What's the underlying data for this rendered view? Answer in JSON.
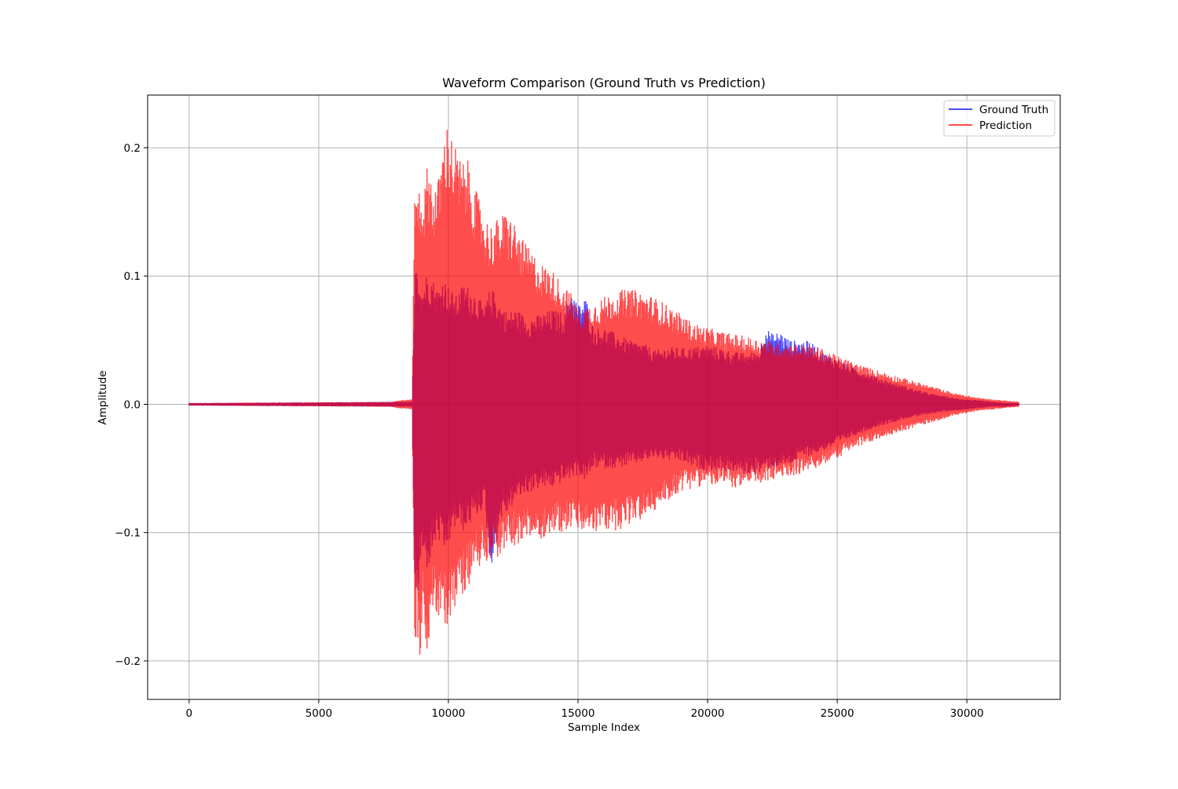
{
  "chart_data": {
    "type": "line",
    "title": "Waveform Comparison (Ground Truth vs Prediction)",
    "xlabel": "Sample Index",
    "ylabel": "Amplitude",
    "xlim": [
      -1600,
      33600
    ],
    "ylim": [
      -0.23,
      0.241
    ],
    "xticks": [
      {
        "value": 0,
        "label": "0"
      },
      {
        "value": 5000,
        "label": "5000"
      },
      {
        "value": 10000,
        "label": "10000"
      },
      {
        "value": 15000,
        "label": "15000"
      },
      {
        "value": 20000,
        "label": "20000"
      },
      {
        "value": 25000,
        "label": "25000"
      },
      {
        "value": 30000,
        "label": "30000"
      }
    ],
    "yticks": [
      {
        "value": -0.2,
        "label": "−0.2"
      },
      {
        "value": -0.1,
        "label": "−0.1"
      },
      {
        "value": 0.0,
        "label": "0.0"
      },
      {
        "value": 0.1,
        "label": "0.1"
      },
      {
        "value": 0.2,
        "label": "0.2"
      }
    ],
    "grid": true,
    "legend_position": "top-right",
    "series": [
      {
        "name": "Ground Truth",
        "color": "#0000ff",
        "opacity": 0.7,
        "envelope": {
          "x": [
            0,
            8600,
            8700,
            8750,
            8800,
            8900,
            9000,
            9200,
            9400,
            9600,
            9800,
            10000,
            10300,
            10600,
            11000,
            11400,
            11600,
            11800,
            12000,
            12300,
            12600,
            13000,
            13500,
            14000,
            14500,
            14700,
            15000,
            15300,
            15600,
            16000,
            16500,
            17000,
            17500,
            18000,
            18500,
            19000,
            19500,
            20000,
            20500,
            21000,
            21500,
            22000,
            22200,
            22500,
            22800,
            23200,
            23600,
            24000,
            24500,
            25000,
            25500,
            26000,
            26500,
            27000,
            27500,
            28000,
            28500,
            29000,
            29500,
            30000,
            30500,
            31000,
            31500,
            32000
          ],
          "upper": [
            0.001,
            0.002,
            0.085,
            0.124,
            0.11,
            0.1,
            0.092,
            0.105,
            0.098,
            0.09,
            0.1,
            0.092,
            0.085,
            0.095,
            0.088,
            0.076,
            0.09,
            0.088,
            0.078,
            0.072,
            0.075,
            0.068,
            0.07,
            0.074,
            0.072,
            0.092,
            0.078,
            0.084,
            0.06,
            0.06,
            0.055,
            0.05,
            0.048,
            0.042,
            0.045,
            0.044,
            0.045,
            0.046,
            0.044,
            0.041,
            0.04,
            0.042,
            0.061,
            0.055,
            0.057,
            0.05,
            0.05,
            0.049,
            0.04,
            0.036,
            0.03,
            0.026,
            0.022,
            0.018,
            0.015,
            0.012,
            0.009,
            0.007,
            0.005,
            0.004,
            0.003,
            0.002,
            0.001,
            0.001
          ],
          "lower": [
            -0.001,
            -0.002,
            -0.14,
            -0.165,
            -0.16,
            -0.13,
            -0.12,
            -0.13,
            -0.115,
            -0.105,
            -0.12,
            -0.11,
            -0.095,
            -0.1,
            -0.09,
            -0.08,
            -0.128,
            -0.118,
            -0.09,
            -0.085,
            -0.075,
            -0.07,
            -0.066,
            -0.065,
            -0.06,
            -0.058,
            -0.055,
            -0.06,
            -0.05,
            -0.05,
            -0.05,
            -0.048,
            -0.045,
            -0.042,
            -0.044,
            -0.045,
            -0.05,
            -0.052,
            -0.052,
            -0.053,
            -0.055,
            -0.054,
            -0.052,
            -0.05,
            -0.049,
            -0.047,
            -0.042,
            -0.04,
            -0.036,
            -0.032,
            -0.026,
            -0.022,
            -0.018,
            -0.015,
            -0.012,
            -0.01,
            -0.008,
            -0.006,
            -0.005,
            -0.004,
            -0.003,
            -0.002,
            -0.002,
            -0.001
          ]
        }
      },
      {
        "name": "Prediction",
        "color": "#ff0000",
        "opacity": 0.7,
        "envelope": {
          "x": [
            0,
            7800,
            8000,
            8600,
            8700,
            8750,
            8800,
            8900,
            9000,
            9100,
            9200,
            9300,
            9400,
            9600,
            9800,
            9900,
            10000,
            10200,
            10500,
            10800,
            11000,
            11300,
            11600,
            11900,
            12200,
            12500,
            12800,
            13200,
            13600,
            14000,
            14400,
            14800,
            15000,
            15400,
            15800,
            16200,
            16600,
            17000,
            17500,
            18000,
            18500,
            19000,
            19500,
            20000,
            20500,
            21000,
            21500,
            22000,
            22500,
            23000,
            23500,
            24000,
            24500,
            25000,
            25500,
            26000,
            26500,
            27000,
            27500,
            28000,
            28500,
            29000,
            29500,
            30000,
            30500,
            31000,
            31500,
            32000
          ],
          "upper": [
            0.001,
            0.002,
            0.003,
            0.004,
            0.183,
            0.16,
            0.17,
            0.175,
            0.165,
            0.172,
            0.19,
            0.185,
            0.17,
            0.175,
            0.205,
            0.218,
            0.22,
            0.205,
            0.19,
            0.19,
            0.17,
            0.155,
            0.14,
            0.145,
            0.15,
            0.145,
            0.13,
            0.12,
            0.11,
            0.105,
            0.095,
            0.085,
            0.074,
            0.078,
            0.082,
            0.086,
            0.089,
            0.09,
            0.088,
            0.083,
            0.077,
            0.07,
            0.063,
            0.06,
            0.057,
            0.055,
            0.053,
            0.051,
            0.049,
            0.048,
            0.047,
            0.046,
            0.043,
            0.038,
            0.034,
            0.03,
            0.027,
            0.024,
            0.021,
            0.018,
            0.015,
            0.012,
            0.009,
            0.007,
            0.005,
            0.004,
            0.003,
            0.002
          ],
          "lower": [
            -0.001,
            -0.002,
            -0.003,
            -0.004,
            -0.183,
            -0.19,
            -0.18,
            -0.2,
            -0.17,
            -0.175,
            -0.207,
            -0.17,
            -0.16,
            -0.17,
            -0.172,
            -0.175,
            -0.17,
            -0.16,
            -0.15,
            -0.14,
            -0.13,
            -0.125,
            -0.12,
            -0.12,
            -0.115,
            -0.11,
            -0.11,
            -0.105,
            -0.105,
            -0.1,
            -0.1,
            -0.096,
            -0.1,
            -0.1,
            -0.1,
            -0.099,
            -0.098,
            -0.094,
            -0.09,
            -0.083,
            -0.075,
            -0.068,
            -0.065,
            -0.063,
            -0.064,
            -0.065,
            -0.065,
            -0.062,
            -0.06,
            -0.057,
            -0.055,
            -0.052,
            -0.047,
            -0.042,
            -0.036,
            -0.032,
            -0.028,
            -0.024,
            -0.021,
            -0.018,
            -0.015,
            -0.012,
            -0.009,
            -0.007,
            -0.005,
            -0.004,
            -0.003,
            -0.002
          ]
        }
      }
    ]
  }
}
